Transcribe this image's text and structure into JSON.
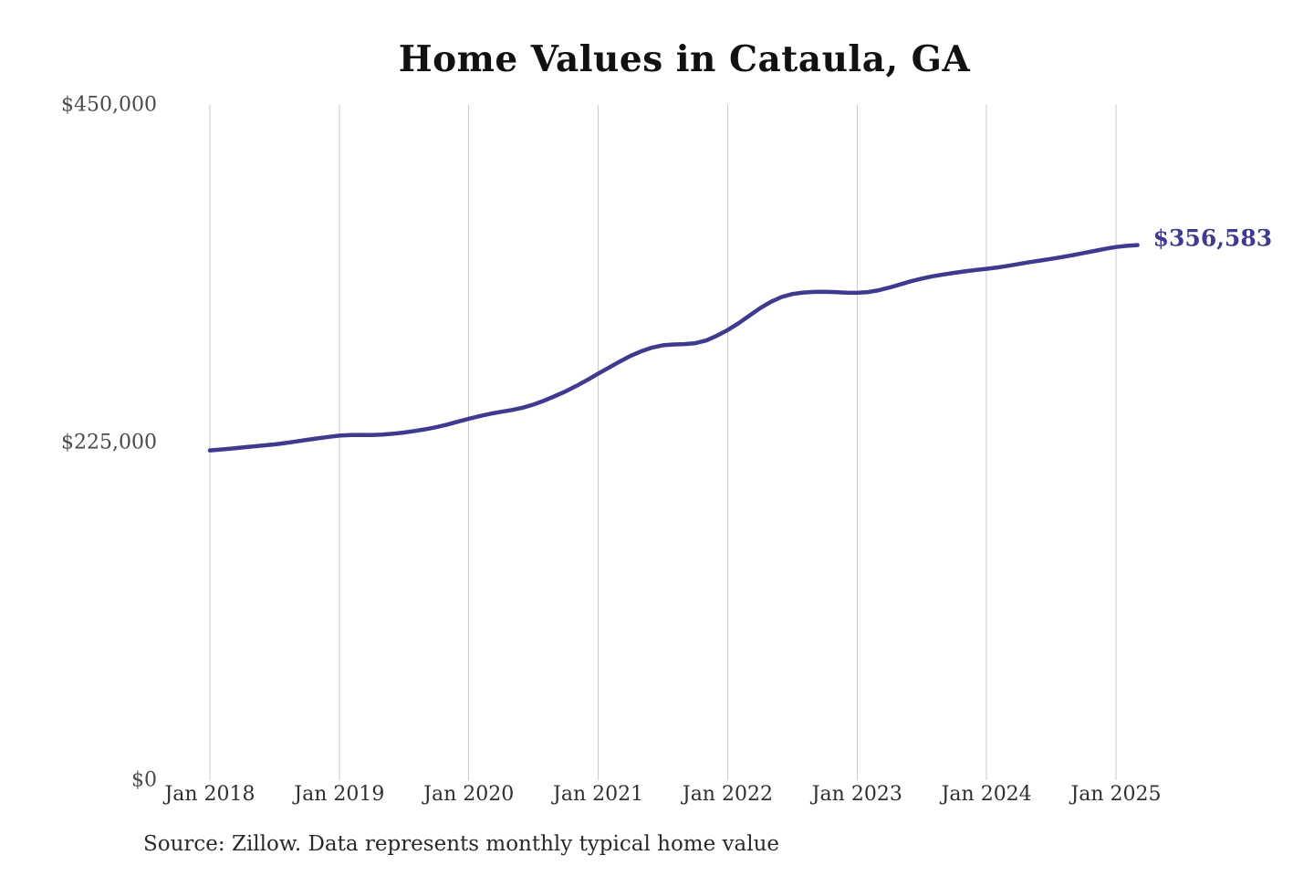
{
  "chart_data": {
    "type": "line",
    "title": "Home Values in Cataula, GA",
    "source_note": "Source: Zillow. Data represents monthly typical home value",
    "end_label": "$356,583",
    "end_value": 356583,
    "line_color": "#3f3a8f",
    "grid_color": "#c9c9c9",
    "background_color": "#ffffff",
    "grid": "vertical-only",
    "legend": "none",
    "xlabel": "",
    "ylabel": "",
    "ylim": [
      0,
      450000
    ],
    "y_ticks": [
      {
        "label": "$450,000",
        "value": 450000
      },
      {
        "label": "$225,000",
        "value": 225000
      },
      {
        "label": "$0",
        "value": 0
      }
    ],
    "x_tick_labels": [
      "Jan 2018",
      "Jan 2019",
      "Jan 2020",
      "Jan 2021",
      "Jan 2022",
      "Jan 2023",
      "Jan 2024",
      "Jan 2025"
    ],
    "x_tick_month_index": [
      0,
      12,
      24,
      36,
      48,
      60,
      72,
      84
    ],
    "series": [
      {
        "name": "Monthly typical home value",
        "start": "2018-01",
        "end": "2025-03",
        "freq": "monthly",
        "values": [
          219800,
          220400,
          221000,
          221700,
          222400,
          223100,
          223800,
          224700,
          225700,
          226800,
          227800,
          228800,
          229600,
          230000,
          230100,
          230000,
          230300,
          230900,
          231700,
          232700,
          233900,
          235300,
          237000,
          238900,
          240900,
          242600,
          244200,
          245500,
          246700,
          248200,
          250300,
          253000,
          256000,
          259200,
          262800,
          266800,
          271000,
          275000,
          279000,
          282800,
          285900,
          288300,
          289800,
          290400,
          290600,
          291200,
          293000,
          296200,
          300000,
          304500,
          309500,
          314500,
          318800,
          322000,
          324000,
          325000,
          325400,
          325500,
          325300,
          324900,
          324800,
          325300,
          326500,
          328300,
          330400,
          332500,
          334300,
          335800,
          337000,
          338100,
          339100,
          340000,
          340800,
          341700,
          342800,
          344000,
          345200,
          346300,
          347400,
          348600,
          349900,
          351300,
          352700,
          354100,
          355300,
          356100,
          356583
        ]
      }
    ]
  }
}
